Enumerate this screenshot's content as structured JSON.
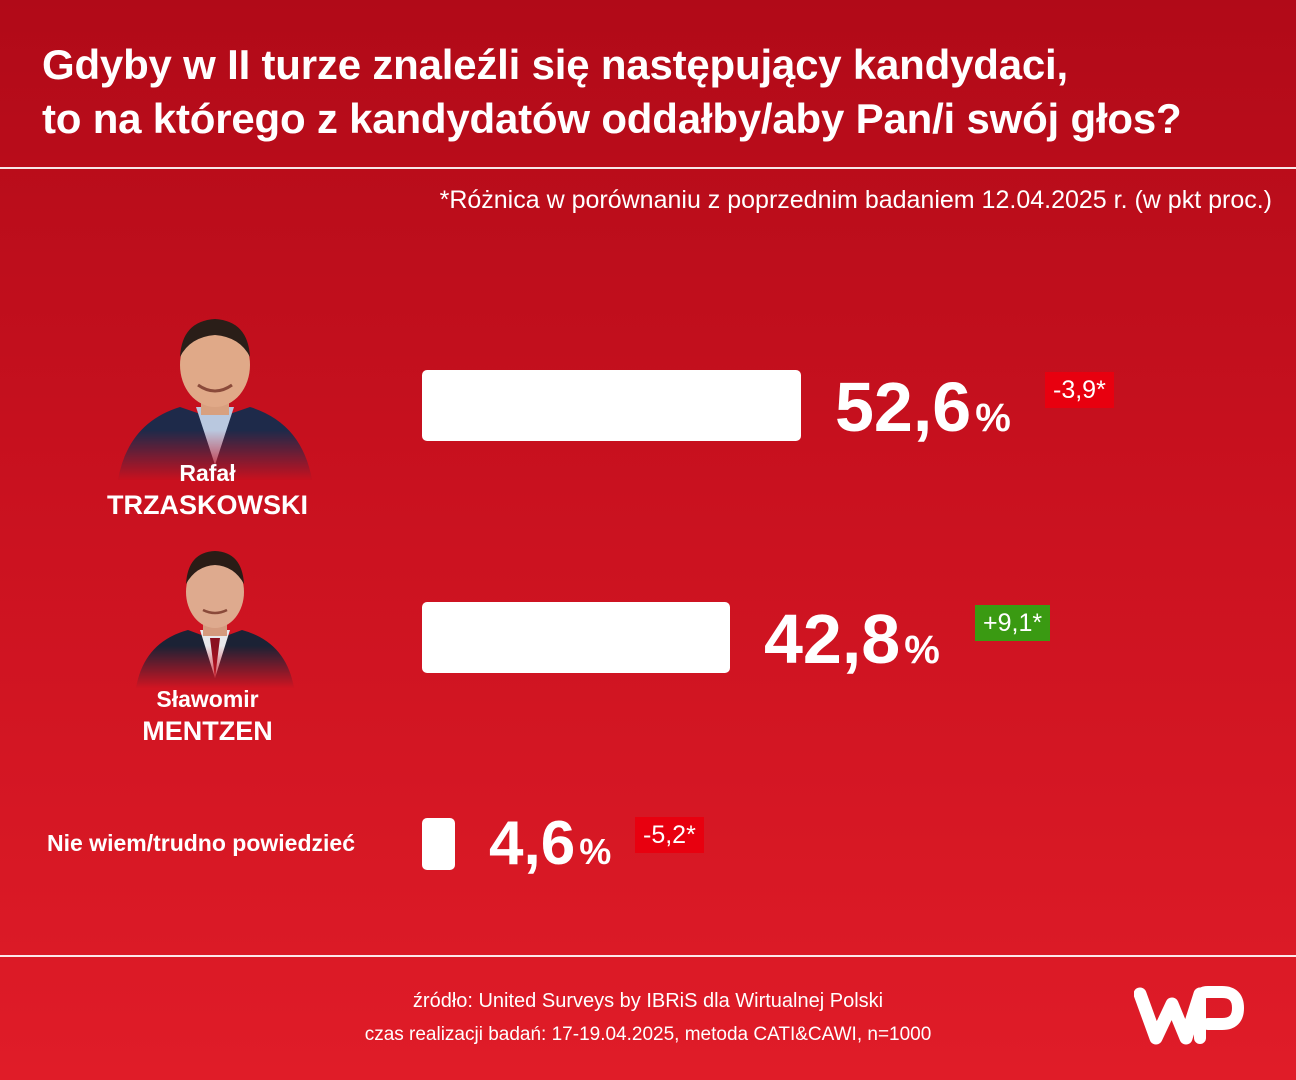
{
  "header": {
    "title_line1": "Gdyby w II turze znaleźli się następujący kandydaci,",
    "title_line2": "to na którego z kandydatów oddałby/aby Pan/i swój głos?"
  },
  "note": "*Różnica w porównaniu z poprzednim badaniem 12.04.2025 r. (w pkt proc.)",
  "chart_data": {
    "type": "bar",
    "orientation": "horizontal",
    "categories": [
      "Rafał TRZASKOWSKI",
      "Sławomir MENTZEN",
      "Nie wiem/trudno powiedzieć"
    ],
    "values": [
      52.6,
      42.8,
      4.6
    ],
    "changes": [
      -3.9,
      9.1,
      -5.2
    ],
    "unit": "%",
    "legend": "none",
    "grid": false
  },
  "rows": [
    {
      "first_name": "Rafał",
      "last_name": "TRZASKOWSKI",
      "value_text": "52,6",
      "pct": "%",
      "change_text": "-3,9*",
      "change_sign": "neg"
    },
    {
      "first_name": "Sławomir",
      "last_name": "MENTZEN",
      "value_text": "42,8",
      "pct": "%",
      "change_text": "+9,1*",
      "change_sign": "pos"
    },
    {
      "label": "Nie wiem/trudno powiedzieć",
      "value_text": "4,6",
      "pct": "%",
      "change_text": "-5,2*",
      "change_sign": "neg"
    }
  ],
  "colors": {
    "background_top": "#b10a18",
    "background_bottom": "#e01c28",
    "bar": "#ffffff",
    "change_negative": "#e8000f",
    "change_positive": "#3a9a12"
  },
  "footer": {
    "source": "źródło: United Surveys by IBRiS dla Wirtualnej Polski",
    "meta": "czas realizacji badań: 17-19.04.2025, metoda CATI&CAWI, n=1000"
  },
  "logo": {
    "icon": "wp-logo-icon"
  }
}
